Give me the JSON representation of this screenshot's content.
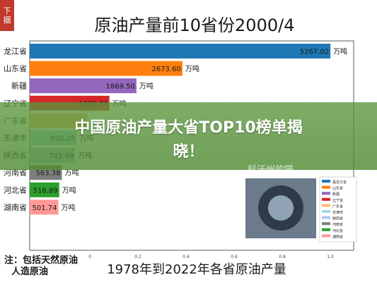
{
  "corner_logo": [
    "下",
    "据"
  ],
  "banner": {
    "line1": "中国原油产量大省TOP10榜单揭",
    "line2": "晓！"
  },
  "watermark": "科沃州的猫",
  "footer_note": [
    "注：包括天然原油",
    "人造原油"
  ],
  "colors": {
    "banner": "#5a9a3c",
    "title_text": "#1a1a1a"
  },
  "chart_data": {
    "type": "bar",
    "orientation": "horizontal",
    "title": "原油产量前10省份2000/4",
    "subtitle": "1978年到2022年各省原油产量",
    "value_suffix": " 万吨",
    "xlim": [
      0,
      5500
    ],
    "x_ticks": [
      "0",
      "0.2",
      "0.4",
      "0.6",
      "0.8",
      "1.0"
    ],
    "categories": [
      "黑龙江省",
      "山东省",
      "新疆",
      "辽宁省",
      "广东省",
      "天津市",
      "陕西省",
      "河南省",
      "河北省",
      "湖南省"
    ],
    "visible_labels": [
      "龙江省",
      "山东省",
      "新疆",
      "辽宁省",
      "广东省",
      "天津市",
      "陕西省",
      "河南省",
      "河北省",
      "湖南省"
    ],
    "values": [
      5267.02,
      2673.6,
      1869.5,
      1395.73,
      1012.0,
      820.25,
      793.49,
      563.38,
      516.89,
      501.74
    ],
    "value_labels": [
      "5267.02",
      "2673.60",
      "1869.50",
      "1395.73",
      "",
      "820.25",
      "793.49",
      "563.38",
      "516.89",
      "501.74"
    ],
    "bar_colors": [
      "#1f77b4",
      "#ff7f0e",
      "#9467bd",
      "#d62728",
      "#ffbb78",
      "#9edae5",
      "#aec7e8",
      "#7f7f7f",
      "#2ca02c",
      "#ff9896"
    ],
    "legend": {
      "placement": "right",
      "entries": [
        "黑龙江省",
        "山东省",
        "新疆",
        "辽宁省",
        "广东省",
        "天津市",
        "陕西省",
        "河南省",
        "河北省",
        "湖南省"
      ],
      "colors": [
        "#1f77b4",
        "#ff7f0e",
        "#9467bd",
        "#d62728",
        "#ffbb78",
        "#9edae5",
        "#aec7e8",
        "#7f7f7f",
        "#2ca02c",
        "#ff9896"
      ]
    },
    "grid": false
  }
}
